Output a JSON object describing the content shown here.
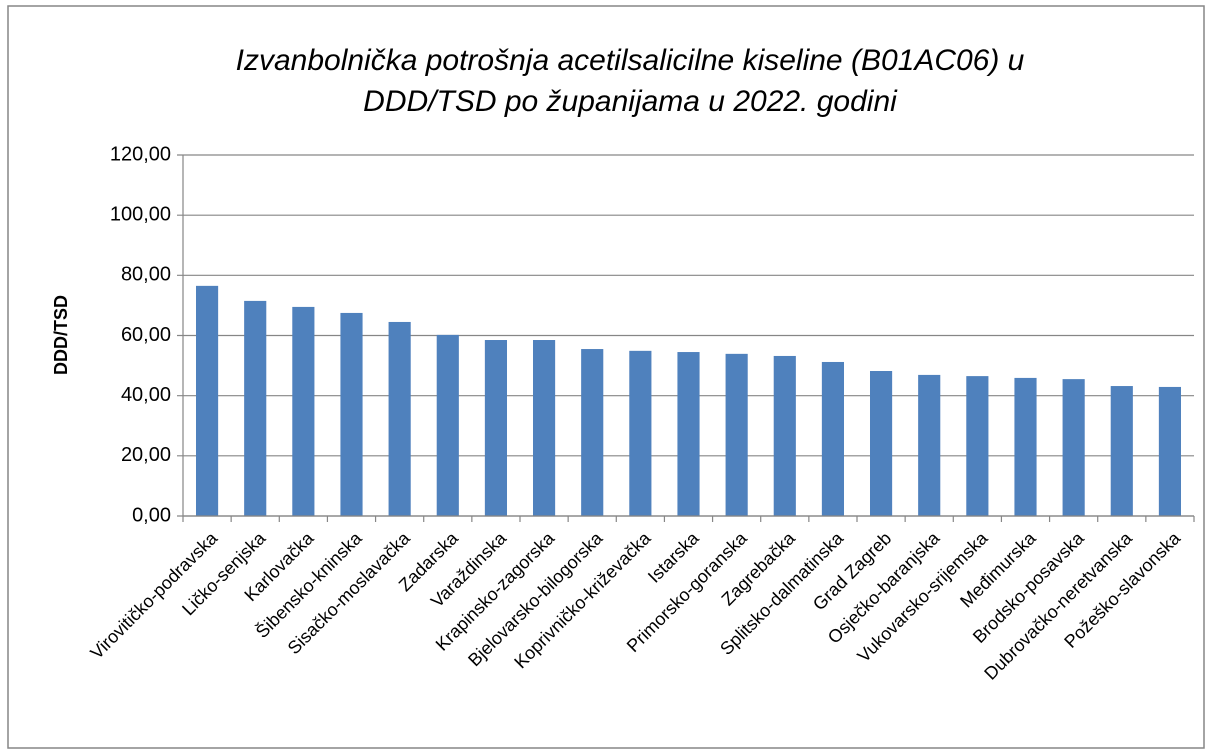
{
  "chart_data": {
    "type": "bar",
    "title": [
      "Izvanbolnička potrošnja acetilsalicilne kiseline (B01AC06) u",
      "DDD/TSD po županijama u 2022. godini"
    ],
    "y_label": "DDD/TSD",
    "categories": [
      "Virovitičko-podravska",
      "Ličko-senjska",
      "Karlovačka",
      "Šibensko-kninska",
      "Sisačko-moslavačka",
      "Zadarska",
      "Varaždinska",
      "Krapinsko-zagorska",
      "Bjelovarsko-bilogorska",
      "Koprivničko-križevačka",
      "Istarska",
      "Primorsko-goranska",
      "Zagrebačka",
      "Splitsko-dalmatinska",
      "Grad Zagreb",
      "Osječko-baranjska",
      "Vukovarsko-srijemska",
      "Međimurska",
      "Brodsko-posavska",
      "Dubrovačko-neretvanska",
      "Požeško-slavonska"
    ],
    "values": [
      76.5,
      71.5,
      69.5,
      67.5,
      64.5,
      60.2,
      58.5,
      58.5,
      55.5,
      54.9,
      54.5,
      53.9,
      53.2,
      51.2,
      48.2,
      46.9,
      46.5,
      45.9,
      45.5,
      43.2,
      42.9
    ],
    "color": "#4f81bd",
    "ylim": [
      0,
      120
    ],
    "yticks": [
      {
        "value": 0,
        "label": "0,00"
      },
      {
        "value": 20,
        "label": "20,00"
      },
      {
        "value": 40,
        "label": "40,00"
      },
      {
        "value": 60,
        "label": "60,00"
      },
      {
        "value": 80,
        "label": "80,00"
      },
      {
        "value": 100,
        "label": "100,00"
      },
      {
        "value": 120,
        "label": "120,00"
      }
    ],
    "grid": true
  }
}
